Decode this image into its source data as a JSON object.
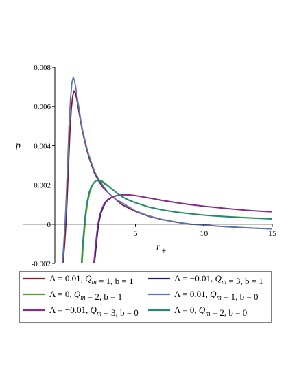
{
  "chart_data": {
    "type": "line",
    "title": "",
    "xlabel": "r",
    "xlabel_subscript": "+",
    "ylabel": "p",
    "xlim": [
      -3.2,
      15
    ],
    "ylim": [
      -0.002,
      0.008
    ],
    "x_ticks": [
      {
        "value": 5,
        "label": "5"
      },
      {
        "value": 10,
        "label": "10"
      },
      {
        "value": 15,
        "label": "15"
      }
    ],
    "y_ticks": [
      {
        "value": 0.008,
        "label": "0.008"
      },
      {
        "value": 0.006,
        "label": "0.006"
      },
      {
        "value": 0.004,
        "label": "0.004"
      },
      {
        "value": 0.002,
        "label": "0.002"
      },
      {
        "value": 0,
        "label": "0"
      },
      {
        "value": -0.002,
        "label": "-0.002"
      }
    ],
    "grid": false,
    "legend_position": "bottom",
    "series": [
      {
        "name": "Λ = 0.01, Q_m = 1, b = 1",
        "color": "#8b1a2b",
        "x": [
          -0.3,
          -0.2,
          -0.1,
          0.0,
          0.1,
          0.2,
          0.3,
          0.4,
          0.5,
          0.6,
          0.7,
          0.8,
          0.9,
          1.0,
          1.1,
          1.2,
          1.4,
          1.6,
          1.8,
          2.0,
          2.3,
          2.6,
          3.0,
          3.5,
          4.0,
          5.0,
          6.0,
          7.0,
          8.0,
          9.0,
          10.0,
          11.0,
          12.0,
          13.0,
          14.0,
          15.0
        ],
        "values": [
          -0.002,
          -0.0012,
          -0.0002,
          0.0012,
          0.0029,
          0.0046,
          0.0058,
          0.0065,
          0.0068,
          0.0067,
          0.0064,
          0.006,
          0.0056,
          0.0052,
          0.0048,
          0.0045,
          0.0039,
          0.0034,
          0.003,
          0.0026,
          0.0022,
          0.0019,
          0.0016,
          0.0013,
          0.001,
          0.00065,
          0.0004,
          0.00023,
          0.0001,
          0.0,
          -3e-05,
          -0.0001,
          -0.00014,
          -0.00018,
          -0.00021,
          -0.00024
        ]
      },
      {
        "name": "Λ = −0.01, Q_m = 3, b = 1",
        "color": "#1c1f6e",
        "x": [
          2.0,
          2.1,
          2.2,
          2.3,
          2.45,
          2.6,
          2.8,
          3.0,
          3.3,
          3.6,
          4.0,
          4.5,
          5.0,
          6.0,
          7.0,
          8.0,
          9.0,
          10.0,
          11.0,
          12.0,
          13.0,
          14.0,
          15.0
        ],
        "values": [
          -0.002,
          -0.0013,
          -0.0006,
          0.0,
          0.0005,
          0.0008,
          0.0011,
          0.00125,
          0.00138,
          0.00145,
          0.0015,
          0.0015,
          0.00146,
          0.00134,
          0.00121,
          0.0011,
          0.001,
          0.00092,
          0.00085,
          0.00078,
          0.00072,
          0.00067,
          0.00063
        ]
      },
      {
        "name": "Λ = 0, Q_m = 2, b = 1",
        "color": "#5a9e1e",
        "x": [
          1.1,
          1.15,
          1.2,
          1.3,
          1.4,
          1.5,
          1.65,
          1.8,
          2.0,
          2.2,
          2.4,
          2.6,
          2.8,
          3.0,
          3.3,
          3.6,
          4.0,
          4.5,
          5.0,
          6.0,
          7.0,
          8.0,
          9.0,
          10.0,
          11.0,
          12.0,
          13.0,
          14.0,
          15.0
        ],
        "values": [
          -0.002,
          -0.0014,
          -0.0009,
          -0.0001,
          0.0006,
          0.0011,
          0.0016,
          0.0019,
          0.00215,
          0.00225,
          0.00225,
          0.00218,
          0.00208,
          0.00196,
          0.00178,
          0.00162,
          0.00142,
          0.00124,
          0.0011,
          0.00088,
          0.00073,
          0.00062,
          0.00054,
          0.00047,
          0.00042,
          0.00038,
          0.00034,
          0.00031,
          0.00028
        ]
      },
      {
        "name": "Λ = 0.01, Q_m = 1, b = 0",
        "color": "#5578b5",
        "x": [
          -0.35,
          -0.25,
          -0.15,
          -0.05,
          0.05,
          0.15,
          0.25,
          0.35,
          0.45,
          0.55,
          0.65,
          0.75,
          0.85,
          1.0,
          1.1,
          1.2,
          1.4,
          1.6,
          1.8,
          2.0,
          2.3,
          2.6,
          3.0,
          3.5,
          4.0,
          5.0,
          6.0,
          7.0,
          8.0,
          9.0,
          10.0,
          11.0,
          12.0,
          13.0,
          14.0,
          15.0
        ],
        "values": [
          -0.002,
          -0.0011,
          0.0,
          0.0015,
          0.0033,
          0.0051,
          0.0064,
          0.0072,
          0.0075,
          0.0073,
          0.0069,
          0.0064,
          0.006,
          0.0053,
          0.0049,
          0.0046,
          0.004,
          0.0035,
          0.0031,
          0.0027,
          0.0023,
          0.002,
          0.0016,
          0.0013,
          0.0011,
          0.00068,
          0.00042,
          0.00024,
          0.00011,
          1e-05,
          -5e-05,
          -0.0001,
          -0.00014,
          -0.00018,
          -0.00021,
          -0.00024
        ]
      },
      {
        "name": "Λ = −0.01, Q_m = 3, b = 0",
        "color": "#8b2a8b",
        "x": [
          1.95,
          2.05,
          2.15,
          2.25,
          2.4,
          2.55,
          2.75,
          2.95,
          3.25,
          3.6,
          4.0,
          4.5,
          5.0,
          6.0,
          7.0,
          8.0,
          9.0,
          10.0,
          11.0,
          12.0,
          13.0,
          14.0,
          15.0
        ],
        "values": [
          -0.002,
          -0.0013,
          -0.0006,
          0.0,
          0.0005,
          0.0008,
          0.0011,
          0.00125,
          0.00138,
          0.00146,
          0.0015,
          0.0015,
          0.00146,
          0.00134,
          0.00121,
          0.0011,
          0.001,
          0.00092,
          0.00085,
          0.00078,
          0.00072,
          0.00067,
          0.00063
        ]
      },
      {
        "name": "Λ = 0, Q_m = 2, b = 0",
        "color": "#1f8a78",
        "x": [
          1.05,
          1.1,
          1.15,
          1.25,
          1.35,
          1.45,
          1.6,
          1.75,
          1.95,
          2.15,
          2.35,
          2.55,
          2.75,
          3.0,
          3.3,
          3.6,
          4.0,
          4.5,
          5.0,
          6.0,
          7.0,
          8.0,
          9.0,
          10.0,
          11.0,
          12.0,
          13.0,
          14.0,
          15.0
        ],
        "values": [
          -0.002,
          -0.0014,
          -0.0009,
          -0.0001,
          0.0006,
          0.0011,
          0.0016,
          0.0019,
          0.00212,
          0.00222,
          0.00222,
          0.00216,
          0.00206,
          0.00194,
          0.00177,
          0.00161,
          0.00141,
          0.00123,
          0.00109,
          0.00087,
          0.00072,
          0.00061,
          0.00053,
          0.00046,
          0.00041,
          0.00037,
          0.00033,
          0.0003,
          0.00027
        ]
      }
    ]
  }
}
